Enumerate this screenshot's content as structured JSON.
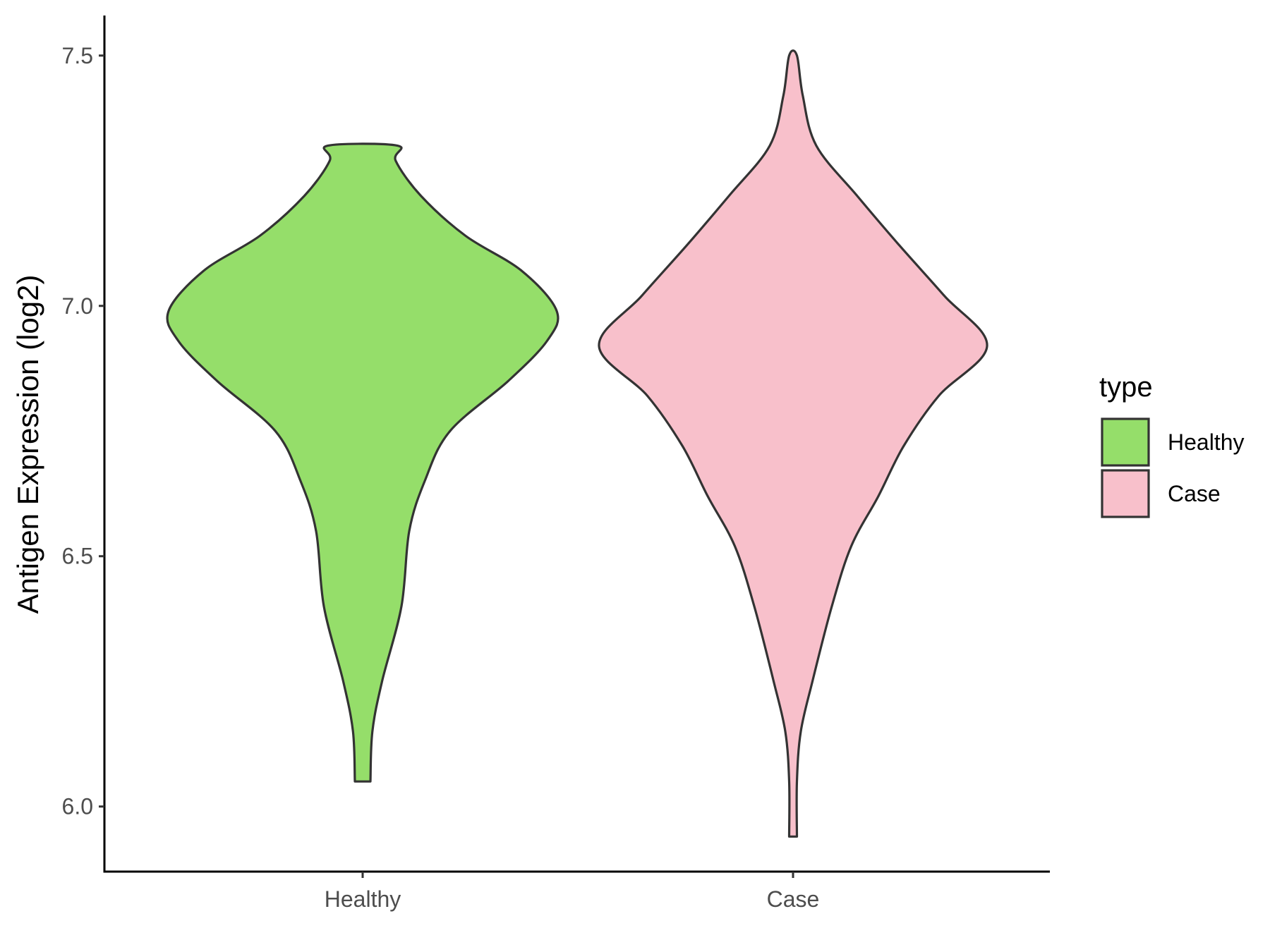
{
  "chart_data": {
    "type": "violin",
    "ylabel": "Antigen Expression (log2)",
    "xlabel": "",
    "ylim": [
      5.87,
      7.58
    ],
    "y_ticks": [
      6.0,
      6.5,
      7.0,
      7.5
    ],
    "y_tick_labels": [
      "6.0",
      "6.5",
      "7.0",
      "7.5"
    ],
    "categories": [
      "Healthy",
      "Case"
    ],
    "legend": {
      "title": "type",
      "placement": "right",
      "entries": [
        "Healthy",
        "Case"
      ]
    },
    "series": [
      {
        "name": "Healthy",
        "color": "#95DE6A",
        "min": 6.05,
        "max": 7.32,
        "density": [
          [
            6.05,
            0.04
          ],
          [
            6.15,
            0.05
          ],
          [
            6.25,
            0.1
          ],
          [
            6.4,
            0.2
          ],
          [
            6.55,
            0.24
          ],
          [
            6.65,
            0.32
          ],
          [
            6.75,
            0.45
          ],
          [
            6.85,
            0.75
          ],
          [
            6.93,
            0.95
          ],
          [
            6.99,
            1.0
          ],
          [
            7.07,
            0.82
          ],
          [
            7.14,
            0.53
          ],
          [
            7.22,
            0.3
          ],
          [
            7.29,
            0.17
          ],
          [
            7.32,
            0.18
          ]
        ]
      },
      {
        "name": "Case",
        "color": "#F8C0CB",
        "min": 5.94,
        "max": 7.5,
        "density": [
          [
            5.94,
            0.02
          ],
          [
            6.05,
            0.02
          ],
          [
            6.15,
            0.04
          ],
          [
            6.25,
            0.1
          ],
          [
            6.4,
            0.2
          ],
          [
            6.52,
            0.3
          ],
          [
            6.62,
            0.44
          ],
          [
            6.72,
            0.57
          ],
          [
            6.82,
            0.75
          ],
          [
            6.92,
            1.0
          ],
          [
            7.02,
            0.78
          ],
          [
            7.12,
            0.55
          ],
          [
            7.22,
            0.33
          ],
          [
            7.32,
            0.12
          ],
          [
            7.42,
            0.05
          ],
          [
            7.5,
            0.02
          ]
        ]
      }
    ]
  }
}
